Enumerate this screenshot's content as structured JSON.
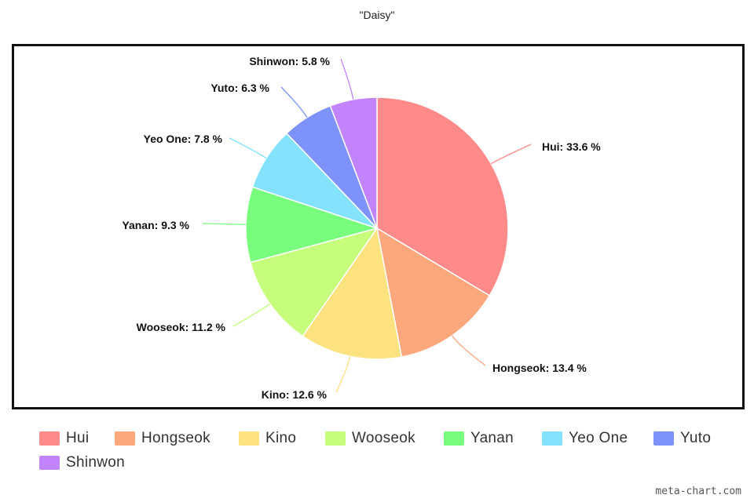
{
  "chart_data": {
    "type": "pie",
    "title": "\"Daisy\"",
    "slices": [
      {
        "name": "Hui",
        "value": 33.6,
        "color": "#fe8a89",
        "label": "Hui: 33.6 %"
      },
      {
        "name": "Hongseok",
        "value": 13.4,
        "color": "#fda77d",
        "label": "Hongseok: 13.4 %"
      },
      {
        "name": "Kino",
        "value": 12.6,
        "color": "#fde280",
        "label": "Kino: 12.6 %"
      },
      {
        "name": "Wooseok",
        "value": 11.2,
        "color": "#c6fd7c",
        "label": "Wooseok: 11.2 %"
      },
      {
        "name": "Yanan",
        "value": 9.3,
        "color": "#78fd7d",
        "label": "Yanan: 9.3 %"
      },
      {
        "name": "Yeo One",
        "value": 7.8,
        "color": "#84e2fd",
        "label": "Yeo One: 7.8 %"
      },
      {
        "name": "Yuto",
        "value": 6.3,
        "color": "#7e92fb",
        "label": "Yuto: 6.3 %"
      },
      {
        "name": "Shinwon",
        "value": 5.8,
        "color": "#c184fd",
        "label": "Shinwon: 5.8 %"
      }
    ],
    "legend_position": "bottom",
    "start_angle": "12 o'clock, clockwise"
  },
  "legend": {
    "items": [
      {
        "label": "Hui",
        "color": "#fe8a89"
      },
      {
        "label": "Hongseok",
        "color": "#fda77d"
      },
      {
        "label": "Kino",
        "color": "#fde280"
      },
      {
        "label": "Wooseok",
        "color": "#c6fd7c"
      },
      {
        "label": "Yanan",
        "color": "#78fd7d"
      },
      {
        "label": "Yeo One",
        "color": "#84e2fd"
      },
      {
        "label": "Yuto",
        "color": "#7e92fb"
      },
      {
        "label": "Shinwon",
        "color": "#c184fd"
      }
    ]
  },
  "watermark": "meta-chart.com"
}
